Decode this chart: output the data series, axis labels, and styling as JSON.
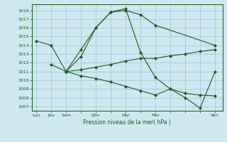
{
  "bg_color": "#cde8f0",
  "grid_color": "#a0c4d0",
  "line_color": "#1a5c1a",
  "ylabel_ticks": [
    1007,
    1008,
    1009,
    1010,
    1011,
    1012,
    1013,
    1014,
    1015,
    1016,
    1017,
    1018
  ],
  "xlabel": "Pression niveau de la mer( hPa )",
  "xtick_labels": [
    "Lun",
    "Jeu",
    "Sam",
    "",
    "Dim",
    "",
    "Mar",
    "",
    "Mer",
    "",
    "",
    "",
    "Ven"
  ],
  "xtick_positions": [
    0,
    1,
    2,
    3,
    4,
    5,
    6,
    7,
    8,
    9,
    10,
    11,
    12
  ],
  "line1": {
    "x": [
      0,
      1,
      2,
      3,
      4,
      5,
      6,
      7,
      8,
      12
    ],
    "y": [
      1014.5,
      1014.0,
      1011.0,
      1013.5,
      1016.0,
      1017.8,
      1018.0,
      1017.5,
      1016.3,
      1014.0
    ]
  },
  "line2": {
    "x": [
      1,
      2,
      3,
      4,
      5,
      6,
      7,
      8,
      9,
      10,
      11,
      12
    ],
    "y": [
      1011.8,
      1011.0,
      1012.7,
      1016.0,
      1017.8,
      1018.2,
      1013.2,
      1010.3,
      1009.0,
      1008.0,
      1006.8,
      1011.0
    ]
  },
  "line3": {
    "x": [
      2,
      3,
      4,
      5,
      6,
      7,
      8,
      9,
      10,
      11,
      12
    ],
    "y": [
      1011.0,
      1011.2,
      1011.5,
      1011.8,
      1012.2,
      1012.5,
      1012.5,
      1012.8,
      1013.0,
      1013.3,
      1013.5
    ]
  },
  "line4": {
    "x": [
      2,
      3,
      4,
      5,
      6,
      7,
      8,
      9,
      10,
      11,
      12
    ],
    "y": [
      1011.0,
      1010.5,
      1010.2,
      1009.8,
      1009.3,
      1008.8,
      1008.3,
      1009.0,
      1008.5,
      1008.3,
      1008.2
    ]
  },
  "ylim": [
    1006.5,
    1018.7
  ],
  "xlim": [
    -0.3,
    12.5
  ]
}
